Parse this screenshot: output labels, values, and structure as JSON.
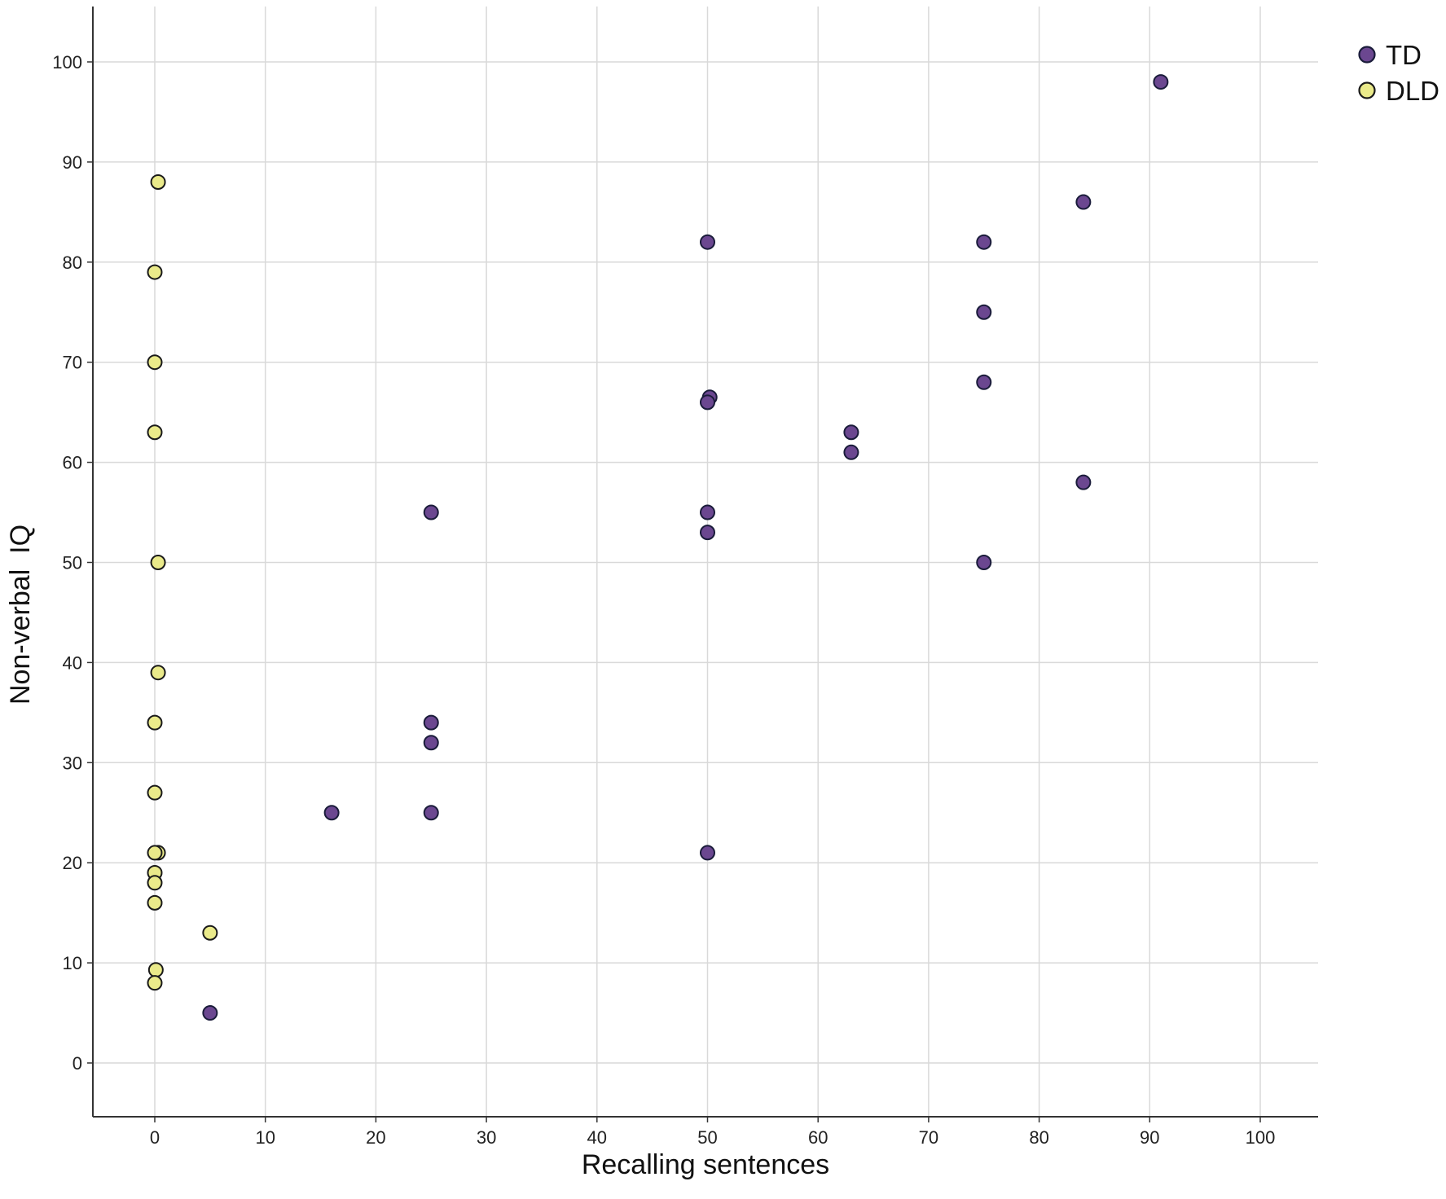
{
  "chart_data": {
    "type": "scatter",
    "title": "",
    "xlabel": "Recalling sentences",
    "ylabel": "Non-verbal  IQ",
    "xlim": [
      -5.5,
      105.5
    ],
    "ylim": [
      -5.5,
      105.5
    ],
    "xticks": [
      0,
      10,
      20,
      30,
      40,
      50,
      60,
      70,
      80,
      90,
      100
    ],
    "yticks": [
      0,
      10,
      20,
      30,
      40,
      50,
      60,
      70,
      80,
      90,
      100
    ],
    "grid": true,
    "legend_position": "top-right",
    "series": [
      {
        "name": "TD",
        "color": "#6b4790",
        "edge": "#1a1c3a",
        "points": [
          {
            "x": 91,
            "y": 98
          },
          {
            "x": 84,
            "y": 86
          },
          {
            "x": 50,
            "y": 82
          },
          {
            "x": 75,
            "y": 82
          },
          {
            "x": 75,
            "y": 75
          },
          {
            "x": 75,
            "y": 68
          },
          {
            "x": 50.2,
            "y": 66.5
          },
          {
            "x": 50,
            "y": 66
          },
          {
            "x": 63,
            "y": 63
          },
          {
            "x": 63,
            "y": 61
          },
          {
            "x": 84,
            "y": 58
          },
          {
            "x": 25,
            "y": 55
          },
          {
            "x": 50,
            "y": 55
          },
          {
            "x": 50,
            "y": 53
          },
          {
            "x": 75,
            "y": 50
          },
          {
            "x": 25,
            "y": 34
          },
          {
            "x": 25,
            "y": 32
          },
          {
            "x": 16,
            "y": 25
          },
          {
            "x": 25,
            "y": 25
          },
          {
            "x": 50,
            "y": 21
          },
          {
            "x": 5,
            "y": 5
          }
        ]
      },
      {
        "name": "DLD",
        "color": "#eaea8a",
        "edge": "#1a1a1a",
        "points": [
          {
            "x": 0.3,
            "y": 88
          },
          {
            "x": 0,
            "y": 79
          },
          {
            "x": 0,
            "y": 70
          },
          {
            "x": 0,
            "y": 63
          },
          {
            "x": 0.3,
            "y": 50
          },
          {
            "x": 0.3,
            "y": 39
          },
          {
            "x": 0,
            "y": 34
          },
          {
            "x": 0,
            "y": 27
          },
          {
            "x": 0.3,
            "y": 21
          },
          {
            "x": 0,
            "y": 21
          },
          {
            "x": 0,
            "y": 19
          },
          {
            "x": 0,
            "y": 18
          },
          {
            "x": 0,
            "y": 16
          },
          {
            "x": 5,
            "y": 13
          },
          {
            "x": 0.1,
            "y": 9.3
          },
          {
            "x": 0,
            "y": 8
          }
        ]
      }
    ]
  }
}
